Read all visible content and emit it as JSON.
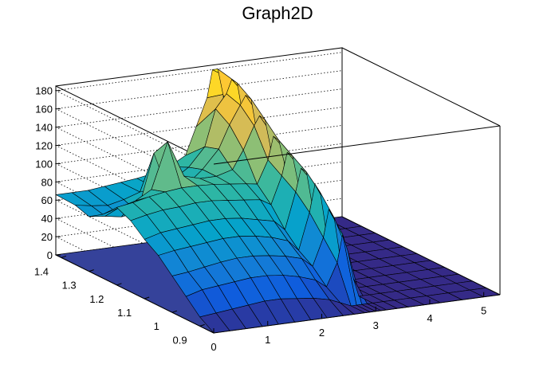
{
  "chart_data": {
    "type": "surface",
    "title": "Graph2D",
    "x_ticks": [
      "0",
      "1",
      "2",
      "3",
      "4",
      "5"
    ],
    "y_ticks": [
      "0.9",
      "1",
      "1.1",
      "1.2",
      "1.3",
      "1.4"
    ],
    "z_ticks": [
      "0",
      "20",
      "40",
      "60",
      "80",
      "100",
      "120",
      "140",
      "160",
      "180"
    ],
    "xlim": [
      0,
      5.3
    ],
    "ylim": [
      0.85,
      1.42
    ],
    "zlim": [
      0,
      185
    ],
    "grid": true,
    "palette": [
      "#352a87",
      "#0f5cdd",
      "#1481d6",
      "#06a4ca",
      "#2eb7a4",
      "#87bf77",
      "#d1bb59",
      "#fec832",
      "#f9fb0e"
    ],
    "mesh_x": [
      0,
      0.3,
      0.6,
      0.9,
      1.2,
      1.5,
      1.8,
      2.1,
      2.4,
      2.6,
      2.8,
      2.9,
      3.0,
      3.1,
      3.2,
      3.4,
      3.6,
      3.9,
      4.2,
      4.6,
      5.0,
      5.3
    ],
    "mesh_y": [
      0.85,
      0.9,
      0.95,
      1.0,
      1.05,
      1.1,
      1.15,
      1.2,
      1.25,
      1.3,
      1.35,
      1.42
    ],
    "z": [
      [
        0,
        0,
        0,
        0,
        0,
        0,
        0,
        0,
        0,
        0,
        0,
        0,
        0,
        0,
        0,
        0,
        0,
        0,
        0,
        0,
        0,
        0
      ],
      [
        10,
        12,
        14,
        16,
        18,
        18,
        16,
        14,
        10,
        5,
        0,
        0,
        0,
        0,
        0,
        0,
        0,
        0,
        0,
        0,
        0,
        0
      ],
      [
        25,
        30,
        32,
        34,
        36,
        36,
        34,
        30,
        24,
        15,
        40,
        70,
        50,
        20,
        0,
        0,
        0,
        0,
        0,
        0,
        0,
        0
      ],
      [
        40,
        42,
        45,
        48,
        50,
        50,
        48,
        45,
        40,
        30,
        60,
        90,
        80,
        40,
        0,
        0,
        0,
        0,
        0,
        0,
        0,
        0
      ],
      [
        55,
        58,
        60,
        62,
        64,
        64,
        62,
        58,
        52,
        40,
        80,
        110,
        100,
        60,
        0,
        0,
        0,
        0,
        0,
        0,
        0,
        0
      ],
      [
        65,
        70,
        72,
        74,
        76,
        76,
        74,
        70,
        66,
        55,
        95,
        120,
        115,
        80,
        0,
        0,
        0,
        0,
        0,
        0,
        0,
        0
      ],
      [
        78,
        82,
        85,
        86,
        88,
        88,
        86,
        84,
        82,
        75,
        105,
        130,
        125,
        95,
        0,
        0,
        0,
        0,
        0,
        0,
        0,
        0
      ],
      [
        85,
        88,
        92,
        95,
        97,
        97,
        96,
        94,
        92,
        90,
        115,
        140,
        135,
        110,
        0,
        0,
        0,
        0,
        0,
        0,
        0,
        0
      ],
      [
        70,
        75,
        80,
        90,
        140,
        100,
        95,
        95,
        100,
        120,
        145,
        155,
        150,
        120,
        0,
        0,
        0,
        0,
        0,
        0,
        0,
        0
      ],
      [
        60,
        58,
        55,
        58,
        120,
        70,
        80,
        95,
        115,
        140,
        160,
        170,
        165,
        130,
        0,
        0,
        0,
        0,
        0,
        0,
        0,
        0
      ],
      [
        65,
        62,
        60,
        64,
        70,
        72,
        78,
        90,
        110,
        150,
        165,
        180,
        175,
        140,
        0,
        0,
        0,
        0,
        0,
        0,
        0,
        0
      ],
      [
        66,
        66,
        66,
        68,
        70,
        72,
        75,
        80,
        90,
        120,
        150,
        180,
        180,
        150,
        0,
        0,
        0,
        0,
        0,
        0,
        0,
        0
      ]
    ]
  }
}
